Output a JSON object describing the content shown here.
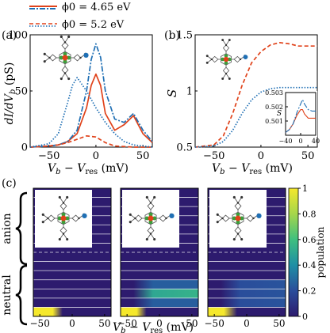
{
  "colors": {
    "red": "#e0421a",
    "blue": "#1f6fb4",
    "navy": "#2d1b6e",
    "yellow": "#f5e82b",
    "colormap": [
      "#2d1b6e",
      "#2a4d9b",
      "#1f8fa5",
      "#3fbf7f",
      "#a5d64b",
      "#f5e82b"
    ]
  },
  "legend": {
    "entries": [
      {
        "label": "ϕ0 = 4.65 eV",
        "style": "solid+dashdot"
      },
      {
        "label": "ϕ0 = 5.2 eV",
        "style": "dashed+dotted"
      }
    ]
  },
  "panels": {
    "a_label": "(a)",
    "b_label": "(b)",
    "c_label": "(c)",
    "c_row_labels": [
      "anion",
      "neutral"
    ],
    "colorbar_label": "population",
    "molecule_icon": "porphyrin-molecule-icon"
  },
  "chart_data": [
    {
      "id": "panel-a",
      "type": "line",
      "xlabel": "Vb − Vres (mV)",
      "ylabel": "dI/dVb (pS)",
      "xlim": [
        -70,
        60
      ],
      "ylim": [
        0,
        100
      ],
      "xticks": [
        -50,
        0,
        50
      ],
      "yticks": [
        0,
        50,
        100
      ],
      "grid": false,
      "series": [
        {
          "style": "solid",
          "color": "red",
          "x": [
            -70,
            -50,
            -40,
            -30,
            -20,
            -10,
            -5,
            0,
            5,
            10,
            20,
            30,
            40,
            50,
            60
          ],
          "y": [
            0,
            1,
            2,
            5,
            12,
            35,
            55,
            65,
            55,
            30,
            15,
            20,
            28,
            12,
            4
          ]
        },
        {
          "style": "dashdot",
          "color": "blue",
          "x": [
            -70,
            -50,
            -40,
            -30,
            -20,
            -10,
            -5,
            0,
            5,
            10,
            20,
            30,
            40,
            50,
            60
          ],
          "y": [
            0,
            1,
            2,
            5,
            15,
            50,
            78,
            92,
            80,
            50,
            25,
            22,
            30,
            15,
            5
          ]
        },
        {
          "style": "dashed",
          "color": "red",
          "x": [
            -70,
            -50,
            -40,
            -30,
            -20,
            -10,
            0,
            10,
            20,
            40,
            60
          ],
          "y": [
            0,
            1,
            2,
            4,
            7,
            10,
            9,
            4,
            1,
            0,
            0
          ]
        },
        {
          "style": "dotted",
          "color": "blue",
          "x": [
            -70,
            -50,
            -40,
            -30,
            -25,
            -20,
            -10,
            0,
            10,
            20,
            30,
            40,
            50,
            60
          ],
          "y": [
            0,
            3,
            12,
            40,
            55,
            62,
            50,
            35,
            22,
            12,
            5,
            2,
            1,
            0
          ]
        }
      ]
    },
    {
      "id": "panel-b",
      "type": "line",
      "xlabel": "Vb − Vres (mV)",
      "ylabel": "S",
      "xlim": [
        -70,
        60
      ],
      "ylim": [
        0.5,
        1.5
      ],
      "xticks": [
        -50,
        0,
        50
      ],
      "yticks": [
        0.5,
        1,
        1.5
      ],
      "grid": false,
      "series": [
        {
          "style": "dashed",
          "color": "red",
          "x": [
            -70,
            -50,
            -40,
            -30,
            -20,
            -10,
            0,
            10,
            20,
            30,
            40,
            50,
            60
          ],
          "y": [
            0.5,
            0.52,
            0.6,
            0.8,
            1.05,
            1.25,
            1.35,
            1.41,
            1.43,
            1.42,
            1.4,
            1.4,
            1.4
          ]
        },
        {
          "style": "dotted",
          "color": "blue",
          "x": [
            -70,
            -50,
            -40,
            -30,
            -20,
            -10,
            0,
            10,
            20,
            30,
            40,
            50,
            60
          ],
          "y": [
            0.5,
            0.51,
            0.55,
            0.65,
            0.8,
            0.92,
            0.99,
            1.02,
            1.03,
            1.03,
            1.03,
            1.03,
            1.03
          ]
        }
      ],
      "inset": {
        "ylabel": "S",
        "xlim": [
          -40,
          40
        ],
        "ylim": [
          0.5,
          0.503
        ],
        "xticks": [
          -40,
          0,
          40
        ],
        "yticks": [
          0.501,
          0.502,
          0.503
        ],
        "series": [
          {
            "style": "solid",
            "color": "red",
            "x": [
              -40,
              -30,
              -20,
              -10,
              0,
              5,
              10,
              20,
              30,
              40
            ],
            "y": [
              0.5002,
              0.5004,
              0.5008,
              0.5014,
              0.5018,
              0.5018,
              0.5015,
              0.5012,
              0.5012,
              0.5012
            ]
          },
          {
            "style": "dashdot",
            "color": "blue",
            "x": [
              -40,
              -30,
              -20,
              -10,
              0,
              5,
              10,
              20,
              30,
              40
            ],
            "y": [
              0.5002,
              0.5004,
              0.5008,
              0.5016,
              0.5022,
              0.5025,
              0.5022,
              0.5018,
              0.5017,
              0.5017
            ]
          }
        ]
      }
    },
    {
      "id": "panel-c",
      "type": "heatmap",
      "xlabel": "Vb − Vres (mV)",
      "xlim": [
        -60,
        60
      ],
      "xticks": [
        -50,
        0,
        50
      ],
      "rows": 14,
      "row_groups": {
        "anion_rows": [
          0,
          7
        ],
        "neutral_rows": [
          7,
          14
        ]
      },
      "colorbar": {
        "ticks": [
          0,
          0.2,
          0.4,
          0.6,
          0.8,
          1
        ],
        "range": [
          0,
          1
        ],
        "label": "population"
      },
      "subpanels": [
        {
          "rows": [
            {
              "row": 13,
              "from": [
                -60,
                1.0
              ],
              "to": [
                -30,
                1.0
              ],
              "tail": 0.0,
              "tail_start": -15
            }
          ]
        },
        {
          "rows": [
            {
              "row": 13,
              "from": [
                -60,
                1.0
              ],
              "to": [
                -35,
                1.0
              ],
              "tail": 0.0,
              "tail_start": -20
            },
            {
              "row": 11,
              "from": [
                -40,
                0.0
              ],
              "to": [
                -10,
                0.5
              ],
              "tail": 0.55,
              "tail_start": 60
            },
            {
              "row": 10,
              "from": [
                -40,
                0.0
              ],
              "to": [
                -10,
                0.25
              ],
              "tail": 0.25,
              "tail_start": 60
            },
            {
              "row": 12,
              "from": [
                -40,
                0.0
              ],
              "to": [
                -10,
                0.25
              ],
              "tail": 0.25,
              "tail_start": 60
            }
          ]
        },
        {
          "rows": [
            {
              "row": 13,
              "from": [
                -60,
                1.0
              ],
              "to": [
                -35,
                1.0
              ],
              "tail": 0.0,
              "tail_start": -15
            },
            {
              "row": 11,
              "from": [
                -40,
                0.0
              ],
              "to": [
                -10,
                0.2
              ],
              "tail": 0.22,
              "tail_start": 60
            },
            {
              "row": 10,
              "from": [
                -40,
                0.0
              ],
              "to": [
                -10,
                0.2
              ],
              "tail": 0.22,
              "tail_start": 60
            },
            {
              "row": 12,
              "from": [
                -40,
                0.0
              ],
              "to": [
                -10,
                0.2
              ],
              "tail": 0.22,
              "tail_start": 60
            }
          ]
        }
      ]
    }
  ]
}
